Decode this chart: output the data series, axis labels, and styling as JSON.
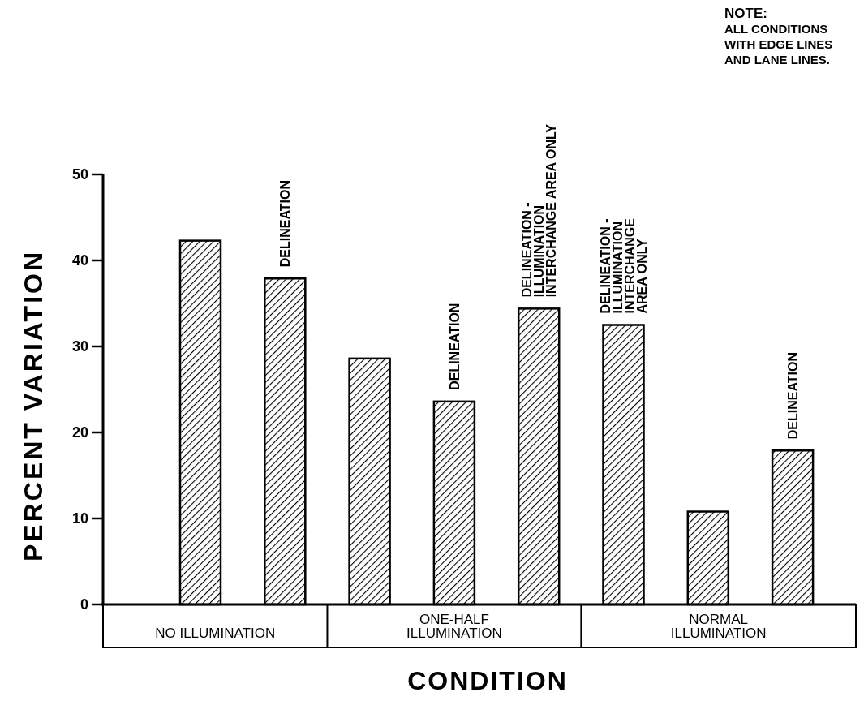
{
  "chart_data": {
    "type": "bar",
    "ylabel": "PERCENT VARIATION",
    "xlabel": "CONDITION",
    "categories": [
      null,
      "DELINEATION",
      null,
      "DELINEATION",
      "DELINEATION -\nILLUMINATION\nINTERCHANGE AREA ONLY",
      "DELINEATION -\nILLUMINATION\nINTERCHANGE\nAREA ONLY",
      null,
      "DELINEATION"
    ],
    "values": [
      42.3,
      37.9,
      28.6,
      23.6,
      34.4,
      32.5,
      10.8,
      17.9
    ],
    "color": "#000000",
    "ylim": [
      0,
      50
    ],
    "yticks": [
      0,
      10,
      20,
      30,
      40,
      50
    ],
    "annotations": [
      "NO ILLUMINATION",
      "ONE-HALF\nILLUMINATION",
      "NORMAL\nILLUMINATION",
      "NOTE:\nALL CONDITIONS\nWITH EDGE LINES\nAND LANE LINES."
    ]
  }
}
